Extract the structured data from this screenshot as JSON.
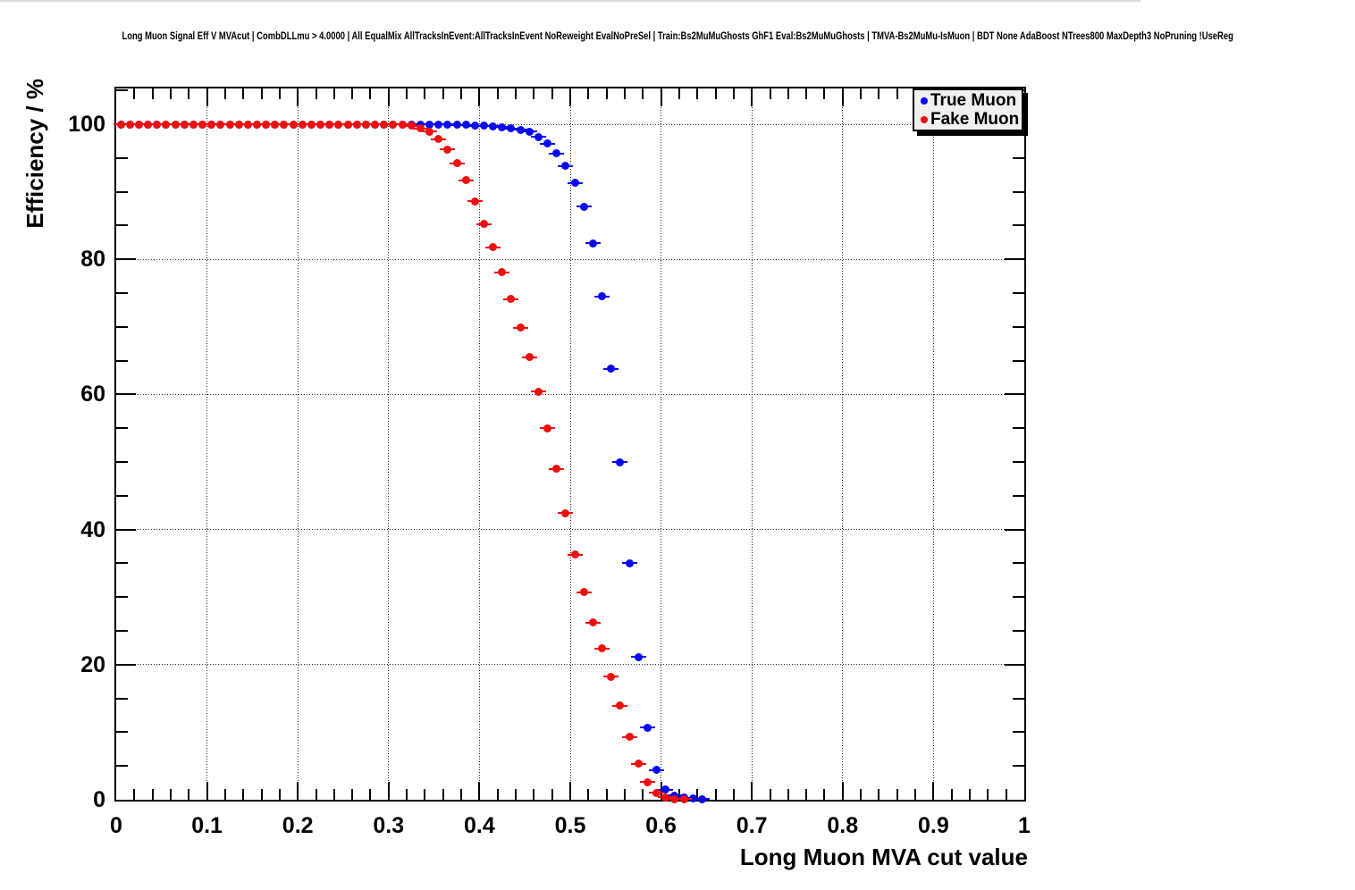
{
  "title": "Long Muon Signal Eff V MVAcut | CombDLLmu > 4.0000 | All EqualMix AllTracksInEvent:AllTracksInEvent NoReweight EvalNoPreSel | Train:Bs2MuMuGhosts GhF1 Eval:Bs2MuMuGhosts | TMVA-Bs2MuMu-IsMuon | BDT None AdaBoost NTrees800 MaxDepth3 NoPruning !UseReg",
  "legend": {
    "entries": [
      {
        "label": "True Muon",
        "color": "#0909ee"
      },
      {
        "label": "Fake Muon",
        "color": "#ee0f0f"
      }
    ]
  },
  "chart_data": {
    "type": "scatter",
    "title": "Long Muon Signal Eff V MVAcut | CombDLLmu > 4.0000 | All EqualMix AllTracksInEvent:AllTracksInEvent NoReweight EvalNoPreSel | Train:Bs2MuMuGhosts GhF1 Eval:Bs2MuMuGhosts | TMVA-Bs2MuMu-IsMuon | BDT None AdaBoost NTrees800 MaxDepth3 NoPruning !UseReg",
    "xlabel": "Long Muon MVA cut value",
    "ylabel": "Efficiency / %",
    "xlim": [
      0,
      1
    ],
    "ylim": [
      0,
      105.3
    ],
    "grid": true,
    "legend_position": "top-right",
    "marker": "filled-circle",
    "x_bin_half_width": 0.005,
    "x_axis": {
      "major_tick_values": [
        0,
        0.1,
        0.2,
        0.3,
        0.4,
        0.5,
        0.6,
        0.7,
        0.8,
        0.9,
        1
      ],
      "tick_labels": [
        "0",
        "0.1",
        "0.2",
        "0.3",
        "0.4",
        "0.5",
        "0.6",
        "0.7",
        "0.8",
        "0.9",
        "1"
      ],
      "minor_tick_step": 0.02
    },
    "y_axis": {
      "major_tick_values": [
        0,
        20,
        40,
        60,
        80,
        100
      ],
      "tick_labels": [
        "0",
        "20",
        "40",
        "60",
        "80",
        "100"
      ],
      "minor_tick_step": 5
    },
    "series": [
      {
        "name": "True Muon",
        "color": "#0909ee",
        "x": [
          0.005,
          0.015,
          0.025,
          0.035,
          0.045,
          0.055,
          0.065,
          0.075,
          0.085,
          0.095,
          0.105,
          0.115,
          0.125,
          0.135,
          0.145,
          0.155,
          0.165,
          0.175,
          0.185,
          0.195,
          0.205,
          0.215,
          0.225,
          0.235,
          0.245,
          0.255,
          0.265,
          0.275,
          0.285,
          0.295,
          0.305,
          0.315,
          0.325,
          0.335,
          0.345,
          0.355,
          0.365,
          0.375,
          0.385,
          0.395,
          0.405,
          0.415,
          0.425,
          0.435,
          0.445,
          0.455,
          0.465,
          0.475,
          0.485,
          0.495,
          0.505,
          0.515,
          0.525,
          0.535,
          0.545,
          0.555,
          0.565,
          0.575,
          0.585,
          0.595,
          0.605,
          0.615,
          0.625,
          0.635,
          0.645
        ],
        "y": [
          100,
          100,
          100,
          100,
          100,
          100,
          100,
          100,
          100,
          100,
          100,
          100,
          100,
          100,
          100,
          100,
          100,
          100,
          100,
          100,
          100,
          100,
          100,
          100,
          100,
          100,
          100,
          100,
          100,
          100,
          100,
          100,
          100,
          100,
          100,
          100,
          100,
          99.9,
          99.9,
          99.8,
          99.8,
          99.7,
          99.6,
          99.4,
          99.2,
          98.9,
          98.1,
          97.1,
          95.7,
          93.8,
          91.3,
          87.8,
          82.4,
          74.5,
          63.8,
          50.0,
          35.0,
          21.1,
          10.7,
          4.4,
          1.5,
          0.6,
          0.3,
          0.15,
          0.1
        ]
      },
      {
        "name": "Fake Muon",
        "color": "#ee0f0f",
        "x": [
          0.005,
          0.015,
          0.025,
          0.035,
          0.045,
          0.055,
          0.065,
          0.075,
          0.085,
          0.095,
          0.105,
          0.115,
          0.125,
          0.135,
          0.145,
          0.155,
          0.165,
          0.175,
          0.185,
          0.195,
          0.205,
          0.215,
          0.225,
          0.235,
          0.245,
          0.255,
          0.265,
          0.275,
          0.285,
          0.295,
          0.305,
          0.315,
          0.325,
          0.335,
          0.345,
          0.355,
          0.365,
          0.375,
          0.385,
          0.395,
          0.405,
          0.415,
          0.425,
          0.435,
          0.445,
          0.455,
          0.465,
          0.475,
          0.485,
          0.495,
          0.505,
          0.515,
          0.525,
          0.535,
          0.545,
          0.555,
          0.565,
          0.575,
          0.585,
          0.595,
          0.605,
          0.615,
          0.625
        ],
        "y": [
          100,
          100,
          100,
          100,
          100,
          100,
          100,
          100,
          100,
          100,
          100,
          100,
          100,
          100,
          100,
          100,
          100,
          100,
          100,
          100,
          100,
          100,
          100,
          100,
          100,
          100,
          100,
          100,
          100,
          100,
          100,
          100,
          99.8,
          99.4,
          98.9,
          97.8,
          96.3,
          94.2,
          91.7,
          88.6,
          85.2,
          81.8,
          78.1,
          74.1,
          69.9,
          65.5,
          60.4,
          55.0,
          49.0,
          42.4,
          36.3,
          30.7,
          26.2,
          22.4,
          18.2,
          13.9,
          9.3,
          5.3,
          2.6,
          1.0,
          0.35,
          0.12,
          0.08
        ]
      }
    ]
  }
}
